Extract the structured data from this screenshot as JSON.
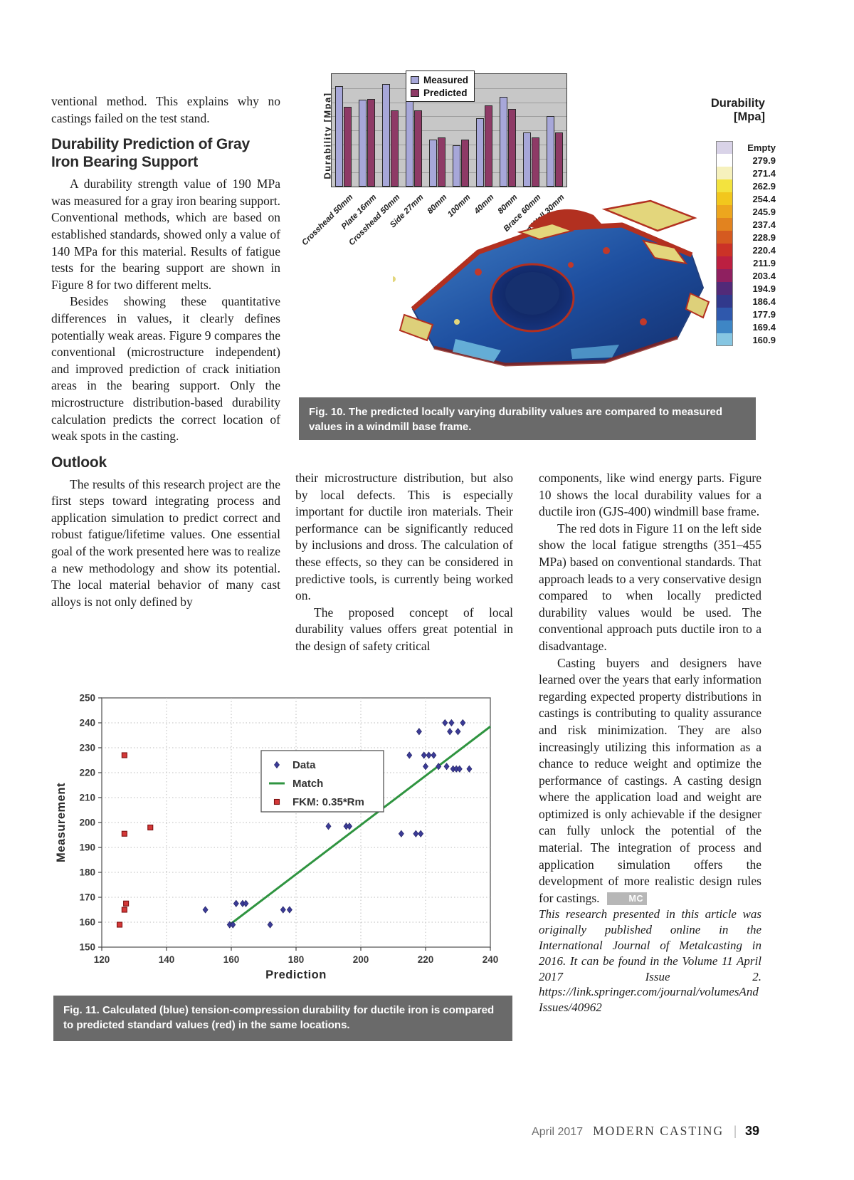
{
  "article": {
    "left_column": {
      "intro": "ventional method. This explains why no castings failed on the test stand.",
      "heading1": "Durability Prediction of Gray Iron Bearing Support",
      "para1": "A durability strength value of 190 MPa was measured for a gray iron bearing support. Conventional methods, which are based on established standards, showed only a value of 140 MPa for this material. Results of fatigue tests for the bearing support are shown in Figure 8 for two different melts.",
      "para2": "Besides showing these quantitative differences in values, it clearly defines potentially weak areas. Figure 9 compares the conventional (microstructure independent) and improved prediction of crack initiation areas in the bearing support. Only the microstructure distribution-based durability calculation predicts the correct location of weak spots in the casting.",
      "heading2": "Outlook",
      "para3": "The results of this research project are the first steps toward integrating process and application simulation to predict correct and robust fatigue/lifetime values. One essential goal of the work presented here was to realize a new methodology and show its potential. The local material behavior of many cast alloys is not only defined by"
    },
    "middle_column": {
      "para1": "their microstructure distribution, but also by local defects. This is especially important for ductile iron materials. Their performance can be significantly reduced by inclusions and dross. The calculation of these effects, so they can be considered in predictive tools, is currently being worked on.",
      "para2": "The proposed concept of local durability values offers great potential in the design of safety critical"
    },
    "right_column": {
      "para1": "components, like wind energy parts. Figure 10 shows the local durability values for a ductile iron (GJS-400) windmill base frame.",
      "para2": "The red dots in Figure 11 on the left side show the local fatigue strengths (351–455 MPa) based on conventional standards. That approach leads to a very conservative design compared to when locally predicted durability values would be used. The conventional approach puts ductile iron to a disadvantage.",
      "para3": "Casting buyers and designers have learned over the years that early information regarding expected property distributions in castings is contributing to quality assurance and risk minimization. They are also increasingly utilizing this information as a chance to reduce weight and optimize the performance of castings. A casting design where the application load and weight are optimized is only achievable if the designer can fully unlock the potential of the material. The integration of process and application simulation offers the development of more realistic design rules for castings.",
      "mc_badge": "MC",
      "footnote": "This research presented in this article was originally published online in the International Journal of Metalcasting in 2016. It can be found in the Volume 11 April 2017 Issue 2. https://link.springer.com/journal/volumesAndIssues/40962"
    }
  },
  "fig10": {
    "caption": "Fig. 10. The predicted locally varying durability values are compared to measured values in a windmill base frame."
  },
  "fig11": {
    "caption": "Fig. 11. Calculated (blue) tension-compression durability for ductile iron is compared to predicted standard values (red) in the same locations."
  },
  "footer": {
    "issue": "April 2017",
    "magazine": "MODERN CASTING",
    "separator": "|",
    "page_number": "39"
  },
  "chart_data": [
    {
      "type": "bar",
      "title": "",
      "ylabel": "Durability [Mpa]",
      "xlabel": "",
      "categories": [
        "Crosshead 50mm",
        "Plate 16mm",
        "Crosshead 50mm",
        "Side 27mm",
        "80mm",
        "100mm",
        "40mm",
        "80mm",
        "Brace 60mm",
        "Partition Wall 30mm"
      ],
      "series": [
        {
          "name": "Measured",
          "color": "#a7a7d9",
          "values_fraction_of_axis": [
            0.89,
            0.77,
            0.91,
            0.78,
            0.42,
            0.37,
            0.61,
            0.8,
            0.48,
            0.63
          ]
        },
        {
          "name": "Predicted",
          "color": "#8e3a66",
          "values_fraction_of_axis": [
            0.71,
            0.78,
            0.68,
            0.68,
            0.44,
            0.42,
            0.72,
            0.69,
            0.44,
            0.48
          ]
        }
      ],
      "grid": "horizontal, 8 unlabeled divisions",
      "legend_position": "top-center inside plot",
      "plot_background": "#c7c7c7",
      "note": "y-axis tick values are not labeled in the figure; bar heights given as fraction of axis height"
    },
    {
      "type": "heatmap",
      "role": "color-scale-legend for casting durability rendering",
      "title": "Durability [Mpa]",
      "entries": [
        {
          "label": "Empty",
          "color": "#d9d3e8"
        },
        {
          "label": "279.9",
          "color": "#ffffff"
        },
        {
          "label": "271.4",
          "color": "#f6f1bd"
        },
        {
          "label": "262.9",
          "color": "#f3e33e"
        },
        {
          "label": "254.4",
          "color": "#f2c71d"
        },
        {
          "label": "245.9",
          "color": "#eda61e"
        },
        {
          "label": "237.4",
          "color": "#e2831f"
        },
        {
          "label": "228.9",
          "color": "#d55a20"
        },
        {
          "label": "220.4",
          "color": "#cb3227"
        },
        {
          "label": "211.9",
          "color": "#bc1f41"
        },
        {
          "label": "203.4",
          "color": "#8f2060"
        },
        {
          "label": "194.9",
          "color": "#522a78"
        },
        {
          "label": "186.4",
          "color": "#31398c"
        },
        {
          "label": "177.9",
          "color": "#2f58ac"
        },
        {
          "label": "169.4",
          "color": "#3e86c5"
        },
        {
          "label": "160.9",
          "color": "#86c6e2"
        }
      ]
    },
    {
      "type": "scatter",
      "xlabel": "Prediction",
      "ylabel": "Measurement",
      "xlim": [
        120,
        240
      ],
      "ylim": [
        150,
        250
      ],
      "xticks": [
        120,
        140,
        160,
        180,
        200,
        220,
        240
      ],
      "yticks": [
        150,
        160,
        170,
        180,
        190,
        200,
        210,
        220,
        230,
        240,
        250
      ],
      "grid": "dotted both axes",
      "legend_position": "upper middle inside plot",
      "legend": [
        {
          "label": "Data",
          "marker": "diamond",
          "color": "#3b3b96"
        },
        {
          "label": "Match",
          "marker": "line",
          "color": "#2f9440"
        },
        {
          "label": "FKM: 0.35*Rm",
          "marker": "square",
          "color": "#d43838"
        }
      ],
      "series": [
        {
          "name": "Data",
          "marker": "diamond",
          "color": "#3b3b96",
          "points": [
            [
              152,
              165
            ],
            [
              159.5,
              159
            ],
            [
              160.5,
              159
            ],
            [
              161.5,
              167.5
            ],
            [
              163.5,
              167.5
            ],
            [
              164.5,
              167.5
            ],
            [
              172,
              159
            ],
            [
              176,
              165
            ],
            [
              178,
              165
            ],
            [
              190,
              198.5
            ],
            [
              195.5,
              198.5
            ],
            [
              196.5,
              198.5
            ],
            [
              212.5,
              195.5
            ],
            [
              217,
              195.5
            ],
            [
              218.5,
              195.5
            ],
            [
              215,
              227
            ],
            [
              219.5,
              227
            ],
            [
              221,
              227
            ],
            [
              222.5,
              227
            ],
            [
              218,
              236.5
            ],
            [
              220,
              222.5
            ],
            [
              224,
              222.5
            ],
            [
              226.5,
              222.5
            ],
            [
              226,
              240
            ],
            [
              228,
              240
            ],
            [
              231.5,
              240
            ],
            [
              227.5,
              236.5
            ],
            [
              230,
              236.5
            ],
            [
              228.5,
              221.5
            ],
            [
              229.5,
              221.5
            ],
            [
              230.5,
              221.5
            ],
            [
              233.5,
              221.5
            ]
          ]
        },
        {
          "name": "FKM: 0.35*Rm",
          "marker": "square",
          "color": "#d43838",
          "points": [
            [
              127,
              227
            ],
            [
              135,
              198
            ],
            [
              127,
              195.5
            ],
            [
              127.5,
              167.5
            ],
            [
              127,
              165
            ],
            [
              125.5,
              159
            ]
          ]
        },
        {
          "name": "Match",
          "marker": "line",
          "color": "#2f9440",
          "line": [
            [
              159.5,
              159
            ],
            [
              240,
              238.5
            ]
          ]
        }
      ]
    }
  ]
}
